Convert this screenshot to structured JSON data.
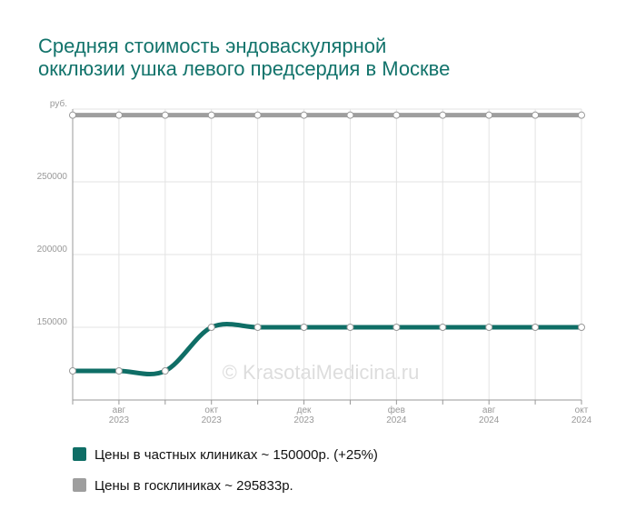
{
  "chart_data": {
    "type": "line",
    "title": [
      "Средняя стоимость эндоваскулярной",
      "окклюзии ушка левого предсердия в Москве"
    ],
    "watermark": "© KrasotaiMedicina.ru",
    "categories": [
      null,
      [
        "авг",
        "2023"
      ],
      null,
      [
        "окт",
        "2023"
      ],
      null,
      [
        "дек",
        "2023"
      ],
      null,
      [
        "фев",
        "2024"
      ],
      null,
      [
        "авг",
        "2024"
      ],
      null,
      [
        "окт",
        "2024"
      ]
    ],
    "series": [
      {
        "name": "Цены в частных клиниках ~ 150000р. (+25%)",
        "color": "#0f6e66",
        "values": [
          120000,
          120000,
          120000,
          150000,
          150000,
          150000,
          150000,
          150000,
          150000,
          150000,
          150000,
          150000
        ]
      },
      {
        "name": "Цены в госклиниках ~ 295833р.",
        "color": "#9e9e9e",
        "values": [
          295833,
          295833,
          295833,
          295833,
          295833,
          295833,
          295833,
          295833,
          295833,
          295833,
          295833,
          295833
        ]
      }
    ],
    "ylim": [
      100000,
      300000
    ],
    "yticks": [
      150000,
      200000,
      250000,
      {
        "value": 300000,
        "label": "руб."
      }
    ],
    "grid": true
  }
}
